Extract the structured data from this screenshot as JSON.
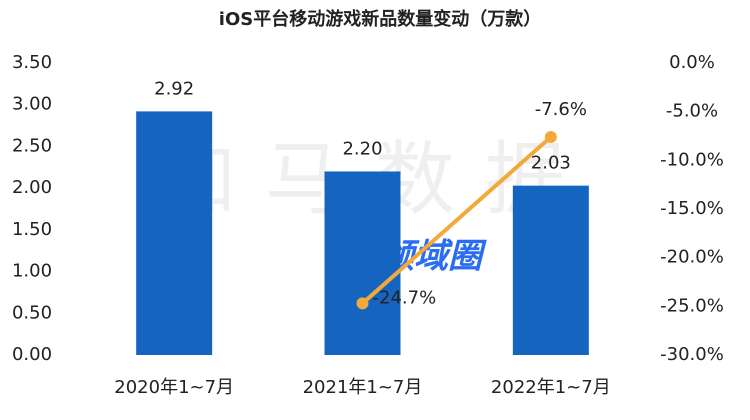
{
  "chart_data": {
    "type": "bar",
    "title": "iOS平台移动游戏新品数量变动（万款）",
    "watermark": "伽马数据",
    "logo": "领域圈",
    "categories": [
      "2020年1~7月",
      "2021年1~7月",
      "2022年1~7月"
    ],
    "series": [
      {
        "type": "bar",
        "color": "#1565c0",
        "values": [
          2.92,
          2.2,
          2.03
        ],
        "value_labels": [
          "2.92",
          "2.20",
          "2.03"
        ]
      },
      {
        "type": "line",
        "axis": "y2",
        "color": "#f2a93b",
        "values": [
          null,
          -24.7,
          -7.6
        ],
        "value_labels": [
          null,
          "-24.7%",
          "-7.6%"
        ]
      }
    ],
    "ylim": [
      0,
      3.5
    ],
    "yticks": [
      {
        "value": 0,
        "label": "0.00"
      },
      {
        "value": 0.5,
        "label": "0.50"
      },
      {
        "value": 1,
        "label": "1.00"
      },
      {
        "value": 1.5,
        "label": "1.50"
      },
      {
        "value": 2,
        "label": "2.00"
      },
      {
        "value": 2.5,
        "label": "2.50"
      },
      {
        "value": 3,
        "label": "3.00"
      },
      {
        "value": 3.5,
        "label": "3.50"
      }
    ],
    "y2lim": [
      -30,
      0
    ],
    "y2ticks": [
      {
        "value": -30,
        "label": "-30.0%"
      },
      {
        "value": -25,
        "label": "-25.0%"
      },
      {
        "value": -20,
        "label": "-20.0%"
      },
      {
        "value": -15,
        "label": "-15.0%"
      },
      {
        "value": -10,
        "label": "-10.0%"
      },
      {
        "value": -5,
        "label": "-5.0%"
      },
      {
        "value": 0,
        "label": "0.0%"
      }
    ],
    "grid": false
  }
}
